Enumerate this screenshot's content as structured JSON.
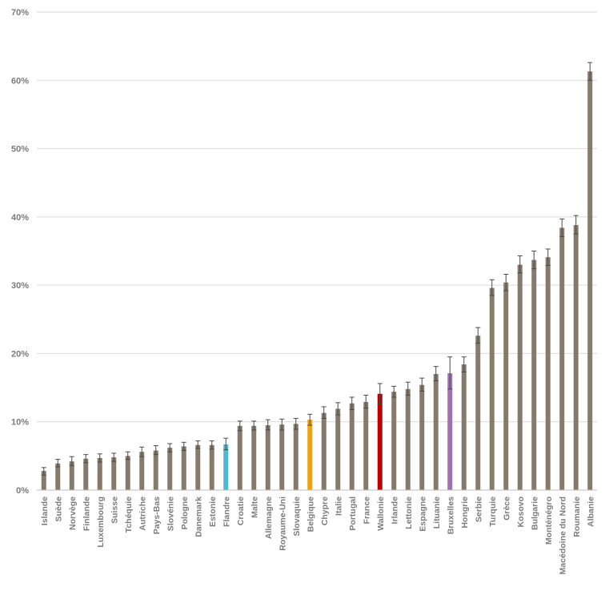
{
  "chart_data": {
    "type": "bar",
    "title": "",
    "xlabel": "",
    "ylabel": "",
    "ylim": [
      0,
      70
    ],
    "yticks": [
      "0%",
      "10%",
      "20%",
      "30%",
      "40%",
      "50%",
      "60%",
      "70%"
    ],
    "grid": true,
    "legend": "none",
    "default_color": "#857b6d",
    "categories": [
      "Islande",
      "Suède",
      "Norvège",
      "Finlande",
      "Luxembourg",
      "Suisse",
      "Tchéquie",
      "Autriche",
      "Pays-Bas",
      "Slovénie",
      "Pologne",
      "Danemark",
      "Estonie",
      "Flandre",
      "Croatie",
      "Malte",
      "Allemagne",
      "Royaume-Uni",
      "Slovaquie",
      "Belgique",
      "Chypre",
      "Italie",
      "Portugal",
      "France",
      "Wallonie",
      "Irlande",
      "Lettonie",
      "Espagne",
      "Lituanie",
      "Bruxelles",
      "Hongrie",
      "Serbie",
      "Turquie",
      "Grèce",
      "Kosovo",
      "Bulgarie",
      "Monténégro",
      "Macédoine du Nord",
      "Roumanie",
      "Albanie"
    ],
    "values": [
      2.8,
      3.9,
      4.2,
      4.6,
      4.7,
      4.8,
      5.0,
      5.6,
      5.8,
      6.2,
      6.4,
      6.6,
      6.6,
      6.7,
      9.4,
      9.4,
      9.5,
      9.6,
      9.7,
      10.3,
      11.3,
      11.9,
      12.7,
      12.9,
      14.1,
      14.4,
      14.8,
      15.4,
      17.0,
      17.1,
      18.4,
      22.6,
      29.6,
      30.4,
      33.0,
      33.7,
      34.1,
      38.4,
      38.8,
      61.3
    ],
    "error_low": [
      2.2,
      3.4,
      3.6,
      4.0,
      4.1,
      4.2,
      4.5,
      4.9,
      5.2,
      5.6,
      5.8,
      6.1,
      6.0,
      5.9,
      8.7,
      8.8,
      8.8,
      8.8,
      8.9,
      9.5,
      10.5,
      11.0,
      11.8,
      12.0,
      12.6,
      13.6,
      13.9,
      14.5,
      16.0,
      14.8,
      17.3,
      21.5,
      28.5,
      29.2,
      31.8,
      32.4,
      32.9,
      37.1,
      37.5,
      60.0
    ],
    "error_high": [
      3.3,
      4.5,
      4.9,
      5.2,
      5.3,
      5.4,
      5.6,
      6.3,
      6.5,
      6.8,
      7.0,
      7.2,
      7.2,
      7.6,
      10.1,
      10.1,
      10.3,
      10.4,
      10.5,
      11.1,
      12.2,
      12.8,
      13.6,
      13.9,
      15.6,
      15.2,
      15.8,
      16.4,
      18.1,
      19.5,
      19.5,
      23.8,
      30.8,
      31.6,
      34.3,
      35.0,
      35.3,
      39.7,
      40.2,
      62.6
    ],
    "highlights": {
      "Flandre": "#4db8d2",
      "Belgique": "#f0a30a",
      "Wallonie": "#c00000",
      "Bruxelles": "#a070b5"
    }
  }
}
